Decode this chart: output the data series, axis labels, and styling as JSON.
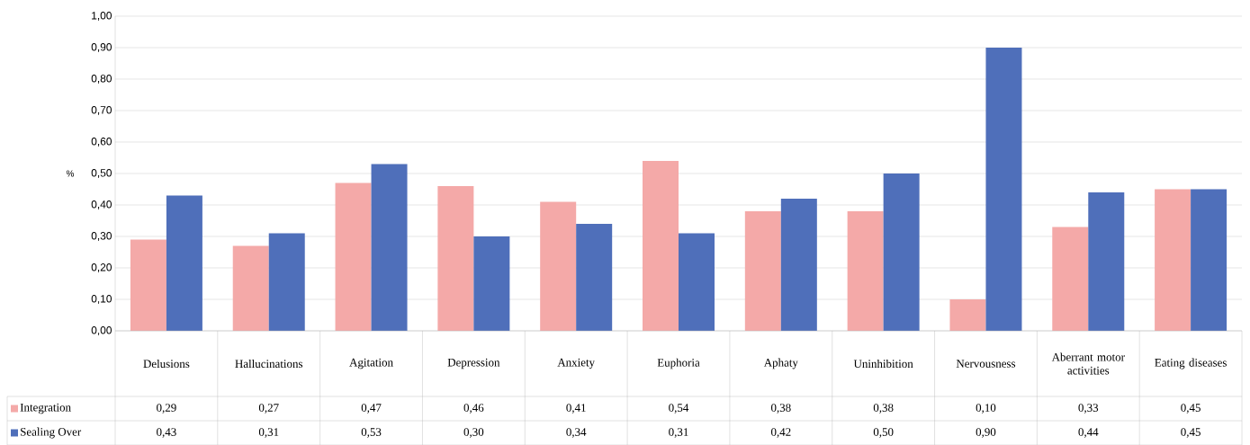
{
  "chart_data": {
    "type": "bar",
    "ylabel": "%",
    "categories": [
      "Delusions",
      "Hallucinations",
      "Agitation",
      "Depression",
      "Anxiety",
      "Euphoria",
      "Aphaty",
      "Uninhibition",
      "Nervousness",
      "Aberrant motor activities",
      "Eating diseases"
    ],
    "series": [
      {
        "name": "Integration",
        "color": "#f4a9a8",
        "values": [
          0.29,
          0.27,
          0.47,
          0.46,
          0.41,
          0.54,
          0.38,
          0.38,
          0.1,
          0.33,
          0.45
        ],
        "value_labels": [
          "0,29",
          "0,27",
          "0,47",
          "0,46",
          "0,41",
          "0,54",
          "0,38",
          "0,38",
          "0,10",
          "0,33",
          "0,45"
        ]
      },
      {
        "name": "Sealing Over",
        "color": "#4f6fba",
        "values": [
          0.43,
          0.31,
          0.53,
          0.3,
          0.34,
          0.31,
          0.42,
          0.5,
          0.9,
          0.44,
          0.45
        ],
        "value_labels": [
          "0,43",
          "0,31",
          "0,53",
          "0,30",
          "0,34",
          "0,31",
          "0,42",
          "0,50",
          "0,90",
          "0,44",
          "0,45"
        ]
      }
    ],
    "ylim": [
      0,
      1
    ],
    "yticks": [
      {
        "value": 0,
        "label": "0,00"
      },
      {
        "value": 0.1,
        "label": "0,10"
      },
      {
        "value": 0.2,
        "label": "0,20"
      },
      {
        "value": 0.3,
        "label": "0,30"
      },
      {
        "value": 0.4,
        "label": "0,40"
      },
      {
        "value": 0.5,
        "label": "0,50"
      },
      {
        "value": 0.6,
        "label": "0,60"
      },
      {
        "value": 0.7,
        "label": "0,70"
      },
      {
        "value": 0.8,
        "label": "0,80"
      },
      {
        "value": 0.9,
        "label": "0,90"
      },
      {
        "value": 1,
        "label": "1,00"
      }
    ],
    "grid": "y",
    "legend": "bottom left"
  }
}
